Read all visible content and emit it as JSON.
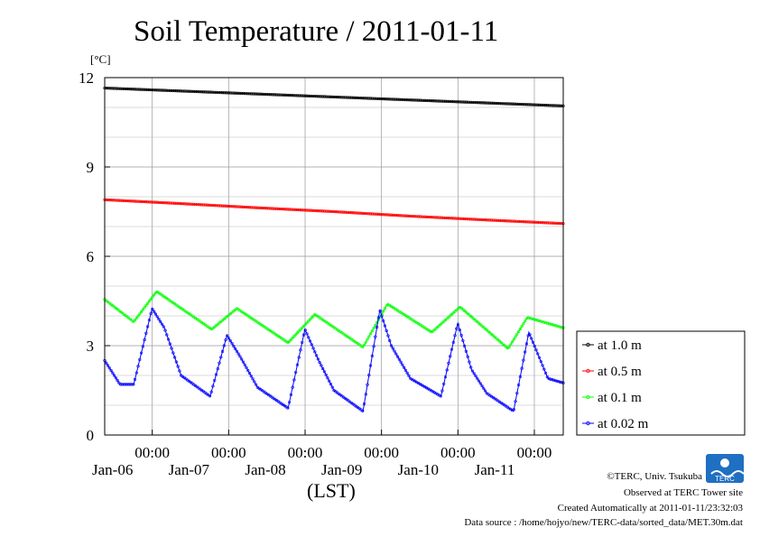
{
  "chart_data": {
    "type": "line",
    "title": "Soil Temperature / 2011-01-11",
    "ylabel": "[°C]",
    "xlabel": "(LST)",
    "ylim": [
      0,
      12
    ],
    "yticks": [
      0,
      3,
      6,
      9,
      12
    ],
    "x_unit": "days",
    "xlim": [
      0,
      6
    ],
    "xticks": [
      {
        "time": "00:00",
        "date": "Jan-06",
        "x": 1
      },
      {
        "time": "00:00",
        "date": "Jan-07",
        "x": 2
      },
      {
        "time": "00:00",
        "date": "Jan-08",
        "x": 3
      },
      {
        "time": "00:00",
        "date": "Jan-09",
        "x": 4
      },
      {
        "time": "00:00",
        "date": "Jan-10",
        "x": 5
      },
      {
        "time": "00:00",
        "date": "Jan-11",
        "x": 6
      }
    ],
    "grid": true,
    "legend_position": "right",
    "series": [
      {
        "name": "at 1.0 m",
        "color": "#000000",
        "x": [
          0,
          1,
          2,
          3,
          4,
          5,
          6
        ],
        "values": [
          11.65,
          11.55,
          11.45,
          11.35,
          11.25,
          11.15,
          11.05
        ]
      },
      {
        "name": "at 0.5 m",
        "color": "#ff0000",
        "x": [
          0,
          1,
          2,
          3,
          4,
          5,
          6
        ],
        "values": [
          7.9,
          7.77,
          7.63,
          7.5,
          7.35,
          7.22,
          7.1
        ]
      },
      {
        "name": "at 0.1 m",
        "color": "#00ff00",
        "x": [
          0,
          0.38,
          0.68,
          1.4,
          1.73,
          2.4,
          2.75,
          3.38,
          3.7,
          4.28,
          4.65,
          5.28,
          5.53,
          6.0
        ],
        "values": [
          4.55,
          3.8,
          4.82,
          3.55,
          4.25,
          3.1,
          4.05,
          2.95,
          4.4,
          3.45,
          4.3,
          2.9,
          3.95,
          3.6
        ]
      },
      {
        "name": "at 0.02 m",
        "color": "#0000ff",
        "x": [
          0,
          0.2,
          0.38,
          0.62,
          0.78,
          1.0,
          1.38,
          1.6,
          1.78,
          2.0,
          2.4,
          2.62,
          2.8,
          3.0,
          3.38,
          3.6,
          3.75,
          4.0,
          4.4,
          4.62,
          4.8,
          5.0,
          5.35,
          5.55,
          5.8,
          6.0
        ],
        "values": [
          2.5,
          1.7,
          1.7,
          4.25,
          3.6,
          2.0,
          1.3,
          3.35,
          2.6,
          1.6,
          0.9,
          3.55,
          2.5,
          1.5,
          0.8,
          4.2,
          3.0,
          1.9,
          1.3,
          3.75,
          2.2,
          1.4,
          0.8,
          3.45,
          1.9,
          1.75
        ]
      }
    ]
  },
  "footer": {
    "copyright": "©TERC, Univ. Tsukuba",
    "observed": "Observed at TERC Tower site",
    "created": "Created Automatically at 2011-01-11/23:32:03",
    "source": "Data source : /home/hojyo/new/TERC-data/sorted_data/MET.30m.dat"
  },
  "logo": {
    "text": "TERC",
    "color": "#1f6fc2"
  }
}
